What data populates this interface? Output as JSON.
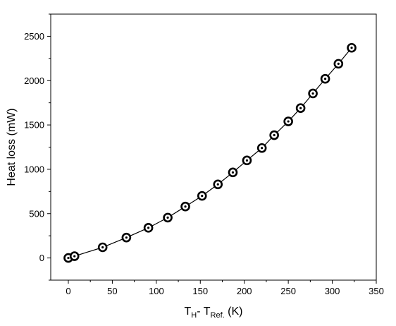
{
  "chart_data": {
    "type": "scatter",
    "title": "",
    "xlabel": "T_H - T_Ref. (K)",
    "xlabel_parts": {
      "main": "T",
      "sub1": "H",
      "mid": "- T",
      "sub2": "Ref.",
      "tail": " (K)"
    },
    "ylabel": "Heat loss (mW)",
    "xlim": [
      -20,
      350
    ],
    "ylim": [
      -250,
      2750
    ],
    "xticks": [
      0,
      50,
      100,
      150,
      200,
      250,
      300,
      350
    ],
    "yticks": [
      0,
      500,
      1000,
      1500,
      2000,
      2500
    ],
    "xtick_labels": [
      "0",
      "50",
      "100",
      "150",
      "200",
      "250",
      "300",
      "350"
    ],
    "ytick_labels": [
      "0",
      "500",
      "1000",
      "1500",
      "2000",
      "2500"
    ],
    "grid": false,
    "legend": "none",
    "marker": "circle-dot",
    "line": "solid",
    "colors": {
      "line": "#000000",
      "marker": "#000000"
    },
    "series": [
      {
        "x": [
          0,
          7,
          39,
          66,
          91,
          113,
          133,
          152,
          170,
          187,
          203,
          220,
          234,
          250,
          264,
          278,
          292,
          307,
          322
        ],
        "y": [
          0,
          20,
          120,
          230,
          340,
          455,
          580,
          700,
          830,
          965,
          1100,
          1240,
          1385,
          1540,
          1690,
          1855,
          2020,
          2190,
          2370
        ]
      }
    ]
  }
}
